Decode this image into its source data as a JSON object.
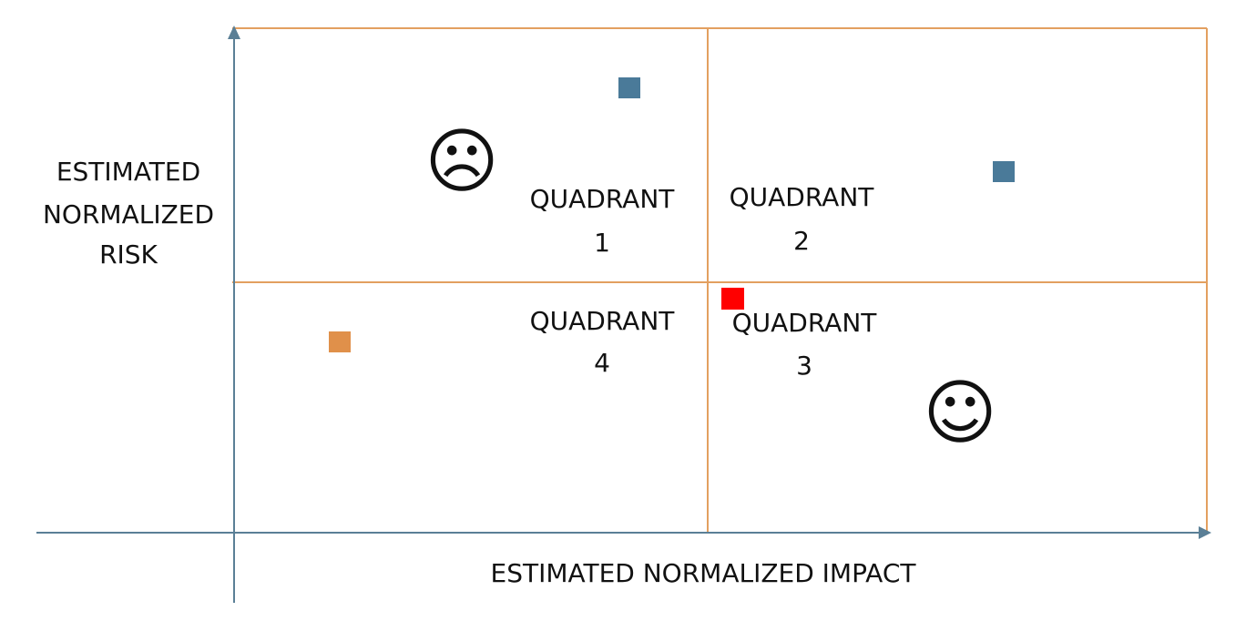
{
  "axes": {
    "x_label": "ESTIMATED NORMALIZED IMPACT",
    "y_label_lines": [
      "ESTIMATED",
      "NORMALIZED",
      "RISK"
    ]
  },
  "quadrants": [
    {
      "id": "q1",
      "line1": "QUADRANT",
      "line2": "1"
    },
    {
      "id": "q2",
      "line1": "QUADRANT",
      "line2": "2"
    },
    {
      "id": "q3",
      "line1": "QUADRANT",
      "line2": "3"
    },
    {
      "id": "q4",
      "line1": "QUADRANT",
      "line2": "4"
    }
  ],
  "faces": {
    "sad": "☹",
    "happy": "☺"
  },
  "markers": [
    {
      "name": "marker-blue-q1",
      "color": "#4a7a99"
    },
    {
      "name": "marker-blue-q2",
      "color": "#4a7a99"
    },
    {
      "name": "marker-red-center",
      "color": "#ff0000"
    },
    {
      "name": "marker-orange-q4",
      "color": "#e0904a"
    }
  ],
  "colors": {
    "axis": "#5a7f96",
    "grid": "#e3a060"
  }
}
